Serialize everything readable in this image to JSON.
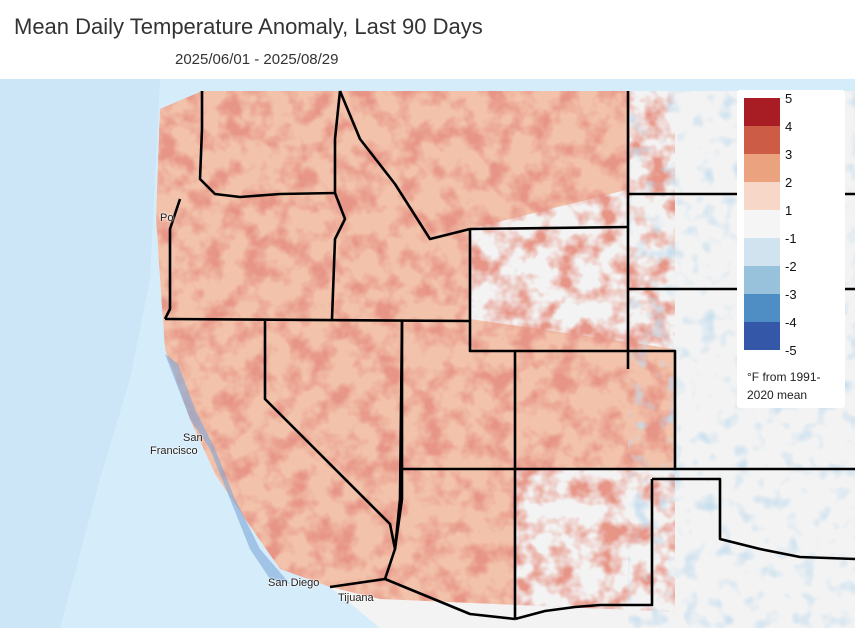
{
  "header": {
    "title": "Mean Daily Temperature Anomaly, Last 90 Days",
    "date_range": "2025/06/01 - 2025/08/29"
  },
  "map": {
    "cities": [
      {
        "id": "portland",
        "label": "Po"
      },
      {
        "id": "san-francisco-1",
        "label": "San"
      },
      {
        "id": "san-francisco-2",
        "label": "Francisco"
      },
      {
        "id": "san-diego",
        "label": "San Diego"
      },
      {
        "id": "tijuana",
        "label": "Tijuana"
      }
    ]
  },
  "legend": {
    "bins": [
      {
        "color": "#a81d24"
      },
      {
        "color": "#cd5c47"
      },
      {
        "color": "#eaa27f"
      },
      {
        "color": "#f7d8c8"
      },
      {
        "color": "#f5f5f5"
      },
      {
        "color": "#d1e3ef"
      },
      {
        "color": "#98c2dc"
      },
      {
        "color": "#4f8ec4"
      },
      {
        "color": "#3557a8"
      }
    ],
    "ticks": [
      "5",
      "4",
      "3",
      "2",
      "1",
      "-1",
      "-2",
      "-3",
      "-4",
      "-5"
    ],
    "units": "°F from 1991-2020 mean"
  },
  "colors": {
    "ocean": "#d5ecfa",
    "land_base": "#f3f3f3"
  }
}
